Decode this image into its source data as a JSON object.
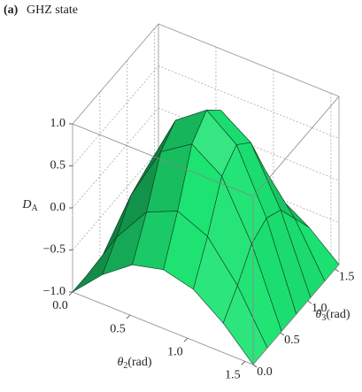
{
  "chart_data": {
    "type": "surface",
    "panel_label": "(a)",
    "title": "GHZ state",
    "xlabel": {
      "base": "θ",
      "sub": "2",
      "unit": "(rad)"
    },
    "ylabel": {
      "base": "θ",
      "sub": "3",
      "unit": "(rad)"
    },
    "zlabel": {
      "base": "D",
      "sub": "A"
    },
    "x": [
      0,
      0.26,
      0.52,
      0.79,
      1.05,
      1.31,
      1.57
    ],
    "y": [
      0,
      0.26,
      0.52,
      0.79,
      1.05,
      1.31,
      1.57
    ],
    "z": [
      [
        -1,
        -0.65,
        -0.39,
        -0.3,
        -0.39,
        -0.65,
        -1
      ],
      [
        -1,
        -0.4,
        0.04,
        0.2,
        0.04,
        -0.4,
        -1
      ],
      [
        -1,
        -0.1,
        0.56,
        0.8,
        0.56,
        -0.1,
        -1
      ],
      [
        -1,
        0,
        0.73,
        1,
        0.73,
        0,
        -1
      ],
      [
        -1,
        -0.1,
        0.56,
        0.8,
        0.56,
        -0.1,
        -1
      ],
      [
        -1,
        -0.4,
        0.04,
        0.2,
        0.04,
        -0.4,
        -1
      ],
      [
        -1,
        -0.7,
        -0.48,
        -0.4,
        -0.48,
        -0.7,
        -1
      ]
    ],
    "color": "#22e070",
    "xlim": [
      0,
      1.57
    ],
    "ylim": [
      0,
      1.57
    ],
    "zlim": [
      -1,
      1
    ],
    "xticks": [
      {
        "value": 0,
        "label": "0.0"
      },
      {
        "value": 0.5,
        "label": "0.5"
      },
      {
        "value": 1,
        "label": "1.0"
      },
      {
        "value": 1.5,
        "label": "1.5"
      }
    ],
    "yticks": [
      {
        "value": 0,
        "label": "0.0"
      },
      {
        "value": 0.5,
        "label": "0.5"
      },
      {
        "value": 1,
        "label": "1.0"
      },
      {
        "value": 1.5,
        "label": "1.5"
      }
    ],
    "zticks": [
      {
        "value": -1,
        "label": "−1.0"
      },
      {
        "value": -0.5,
        "label": "−0.5"
      },
      {
        "value": 0,
        "label": "0.0"
      },
      {
        "value": 0.5,
        "label": "0.5"
      },
      {
        "value": 1,
        "label": "1.0"
      }
    ],
    "grid": true
  }
}
